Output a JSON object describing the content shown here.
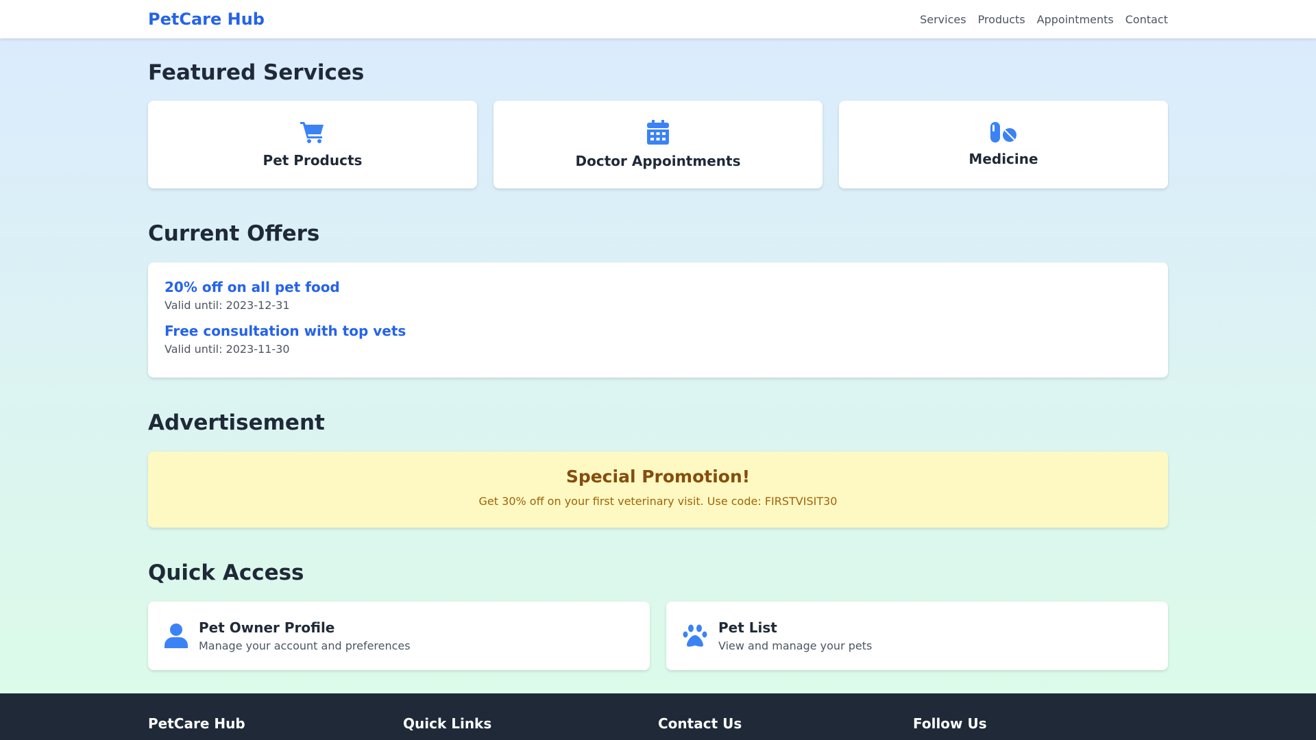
{
  "header": {
    "logo": "PetCare Hub",
    "nav": [
      "Services",
      "Products",
      "Appointments",
      "Contact"
    ]
  },
  "featured": {
    "title": "Featured Services",
    "items": [
      {
        "label": "Pet Products",
        "icon": "cart-icon"
      },
      {
        "label": "Doctor Appointments",
        "icon": "calendar-icon"
      },
      {
        "label": "Medicine",
        "icon": "pills-icon"
      }
    ]
  },
  "offers": {
    "title": "Current Offers",
    "items": [
      {
        "title": "20% off on all pet food",
        "valid": "Valid until: 2023-12-31"
      },
      {
        "title": "Free consultation with top vets",
        "valid": "Valid until: 2023-11-30"
      }
    ]
  },
  "ad": {
    "title": "Advertisement",
    "headline": "Special Promotion!",
    "text": "Get 30% off on your first veterinary visit. Use code: FIRSTVISIT30"
  },
  "quick": {
    "title": "Quick Access",
    "items": [
      {
        "title": "Pet Owner Profile",
        "desc": "Manage your account and preferences",
        "icon": "user-icon"
      },
      {
        "title": "Pet List",
        "desc": "View and manage your pets",
        "icon": "paw-icon"
      }
    ]
  },
  "footer": {
    "cols": [
      "PetCare Hub",
      "Quick Links",
      "Contact Us",
      "Follow Us"
    ]
  },
  "colors": {
    "accent": "#2563eb",
    "icon": "#3b82f6",
    "footer": "#1f2937",
    "ad_bg": "#fef9c3"
  }
}
